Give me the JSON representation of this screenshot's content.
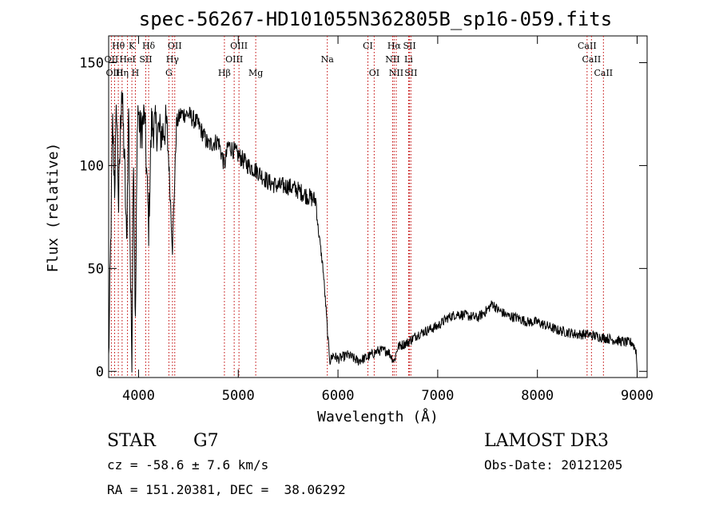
{
  "chart_data": {
    "type": "line",
    "title": "spec-56267-HD101055N362805B_sp16-059.fits",
    "xlabel": "Wavelength (Å)",
    "ylabel": "Flux (relative)",
    "xlim": [
      3700,
      9100
    ],
    "ylim": [
      -3,
      163
    ],
    "xticks": [
      4000,
      5000,
      6000,
      7000,
      8000,
      9000
    ],
    "yticks": [
      0,
      50,
      100,
      150
    ],
    "grid": false,
    "series": [
      {
        "x": [
          3700,
          3720,
          3740,
          3760,
          3780,
          3800,
          3830,
          3860,
          3880,
          3900,
          3920,
          3933,
          3950,
          3968,
          3990,
          4020,
          4060,
          4101,
          4130,
          4180,
          4230,
          4280,
          4300,
          4340,
          4380,
          4420,
          4500,
          4600,
          4700,
          4800,
          4861,
          4900,
          5000,
          5100,
          5200,
          5300,
          5400,
          5500,
          5600,
          5700,
          5780,
          5800,
          5850,
          5880,
          5900,
          5920,
          5950,
          6000,
          6100,
          6200,
          6300,
          6400,
          6500,
          6563,
          6600,
          6700,
          6800,
          6900,
          7000,
          7100,
          7200,
          7300,
          7400,
          7500,
          7550,
          7600,
          7700,
          7800,
          7900,
          8000,
          8100,
          8200,
          8300,
          8400,
          8500,
          8600,
          8700,
          8800,
          8900,
          8950,
          8990,
          9000
        ],
        "y": [
          5,
          60,
          120,
          90,
          130,
          80,
          140,
          100,
          60,
          130,
          40,
          10,
          110,
          20,
          130,
          115,
          125,
          70,
          120,
          118,
          115,
          120,
          105,
          60,
          120,
          125,
          125,
          120,
          110,
          112,
          100,
          110,
          105,
          100,
          97,
          92,
          90,
          90,
          88,
          85,
          83,
          70,
          50,
          30,
          15,
          5,
          8,
          6,
          8,
          5,
          7,
          10,
          10,
          5,
          12,
          14,
          18,
          20,
          22,
          26,
          28,
          27,
          26,
          30,
          33,
          30,
          27,
          26,
          24,
          24,
          22,
          20,
          19,
          18,
          18,
          17,
          16,
          15,
          14,
          14,
          10,
          0
        ]
      }
    ],
    "lines": [
      {
        "label": "Hθ",
        "x": 3797,
        "row": 0
      },
      {
        "label": "K",
        "x": 3933,
        "row": 0
      },
      {
        "label": "Hδ",
        "x": 4101,
        "row": 0
      },
      {
        "label": "OII",
        "x": 4363,
        "row": 0
      },
      {
        "label": "OIII",
        "x": 5007,
        "row": 0
      },
      {
        "label": "CI",
        "x": 6300,
        "row": 0
      },
      {
        "label": "Hα",
        "x": 6563,
        "row": 0
      },
      {
        "label": "SII",
        "x": 6717,
        "row": 0
      },
      {
        "label": "CaII",
        "x": 8498,
        "row": 0
      },
      {
        "label": "OII",
        "x": 3727,
        "row": 1
      },
      {
        "label": "HeI",
        "x": 3889,
        "row": 1
      },
      {
        "label": "SII",
        "x": 4072,
        "row": 1
      },
      {
        "label": "Hγ",
        "x": 4340,
        "row": 1
      },
      {
        "label": "OIII",
        "x": 4959,
        "row": 1
      },
      {
        "label": "Na",
        "x": 5893,
        "row": 1
      },
      {
        "label": "NII",
        "x": 6548,
        "row": 1
      },
      {
        "label": "Li",
        "x": 6708,
        "row": 1
      },
      {
        "label": "CaII",
        "x": 8542,
        "row": 1
      },
      {
        "label": "OIII",
        "x": 3760,
        "row": 2
      },
      {
        "label": "Hη",
        "x": 3835,
        "row": 2
      },
      {
        "label": "H",
        "x": 3968,
        "row": 2
      },
      {
        "label": "G",
        "x": 4304,
        "row": 2
      },
      {
        "label": "Hβ",
        "x": 4861,
        "row": 2
      },
      {
        "label": "Mg",
        "x": 5175,
        "row": 2
      },
      {
        "label": "OI",
        "x": 6363,
        "row": 2
      },
      {
        "label": "NII",
        "x": 6584,
        "row": 2
      },
      {
        "label": "SII",
        "x": 6731,
        "row": 2
      },
      {
        "label": "CaII",
        "x": 8662,
        "row": 2
      }
    ],
    "colors": {
      "spectrum": "#000000",
      "line_marker": "#c00000"
    }
  },
  "info": {
    "class": "STAR",
    "subclass": "G7",
    "survey": "LAMOST DR3",
    "cz": "cz = -58.6 ± 7.6 km/s",
    "obs_date": "Obs-Date: 20121205",
    "radec": "RA = 151.20381, DEC =  38.06292"
  }
}
